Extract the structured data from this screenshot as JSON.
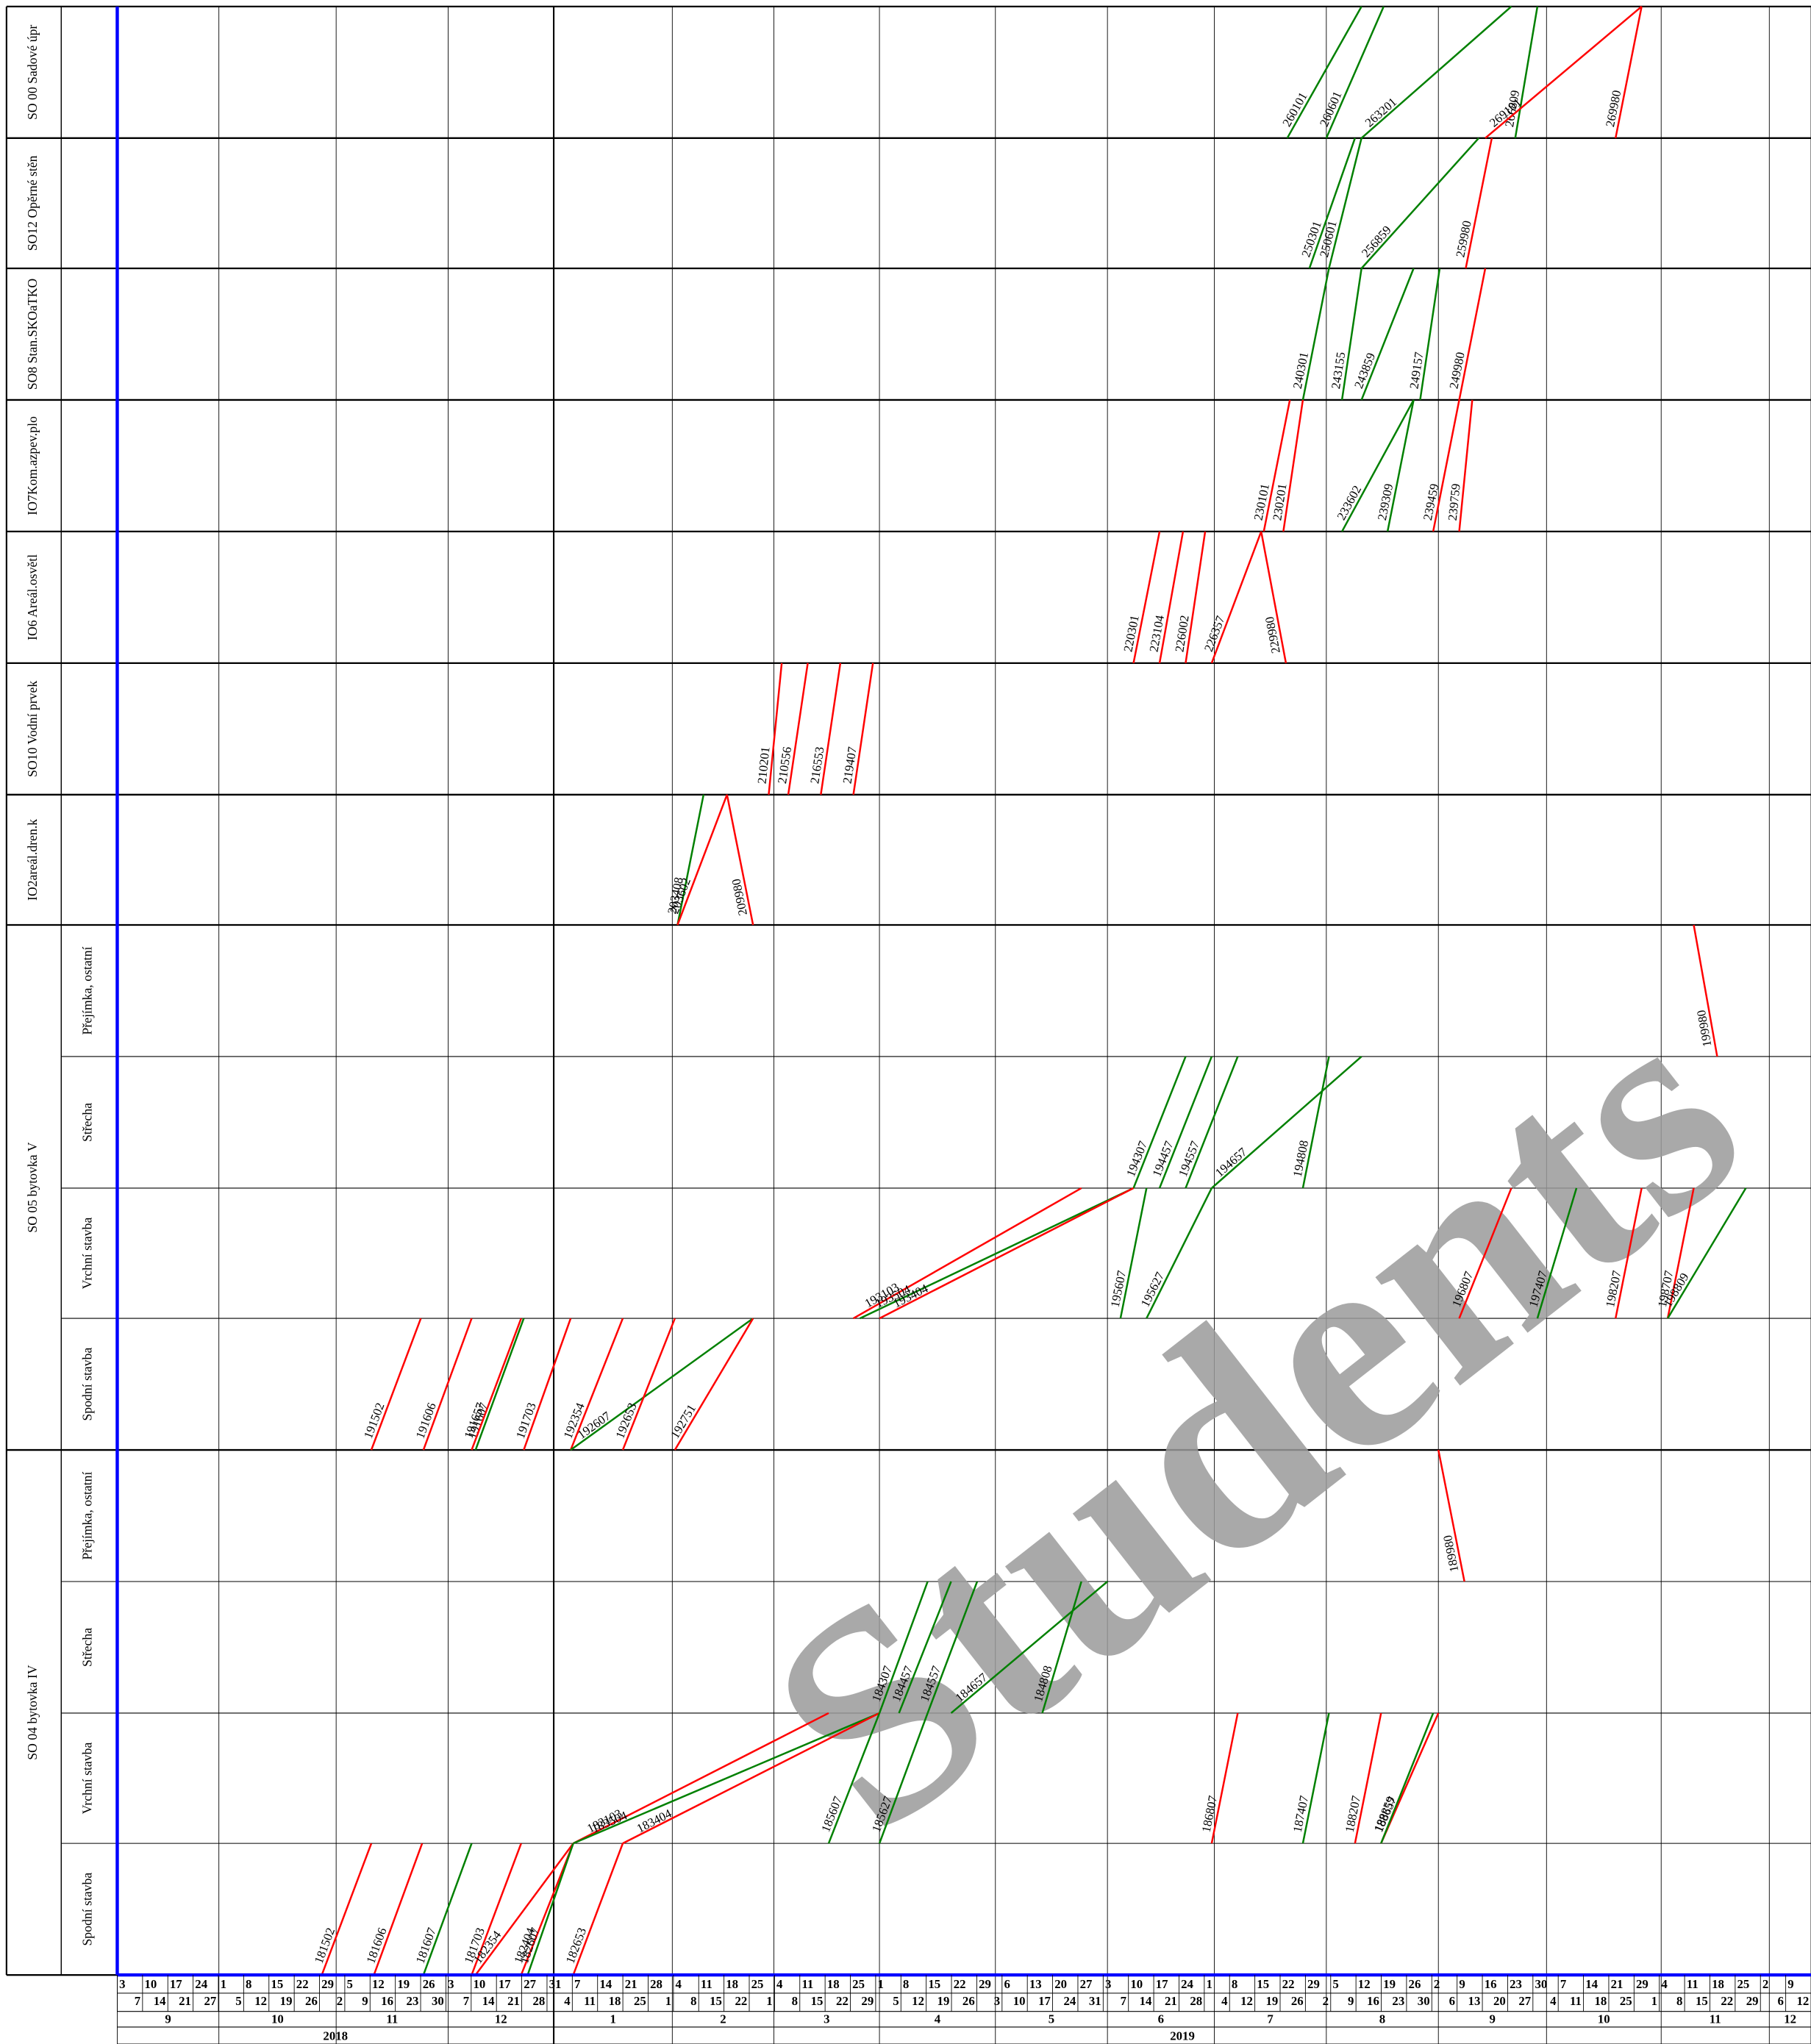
{
  "rows": [
    "SO 00 Sadové úpr",
    "SO12 Opěrné stěn",
    "SO8 Stan.SKOaTKO",
    "IO7Kom.azpev.plo",
    "IO6 Areál.osvětl",
    "SO10 Vodní prvek",
    "IO2areál.dren.k"
  ],
  "groups": [
    {
      "label": "SO 05 bytovka V",
      "subrows": [
        "Přejímka, ostatní",
        "Střecha",
        "Vrchní stavba",
        "Spodní stavba"
      ]
    },
    {
      "label": "SO 04 bytovka IV",
      "subrows": [
        "Přejímka, ostatní",
        "Střecha",
        "Vrchní stavba",
        "Spodní stavba"
      ]
    }
  ],
  "activities": [
    {
      "label": "260101",
      "color": "#008000"
    },
    {
      "label": "260601",
      "color": "#008000"
    },
    {
      "label": "263201",
      "color": "#008000"
    },
    {
      "label": "266809",
      "color": "#008000"
    },
    {
      "label": "269101",
      "color": "#ff0000"
    },
    {
      "label": "269980",
      "color": "#ff0000"
    },
    {
      "label": "250301",
      "color": "#008000"
    },
    {
      "label": "250601",
      "color": "#008000"
    },
    {
      "label": "256859",
      "color": "#008000"
    },
    {
      "label": "259980",
      "color": "#ff0000"
    },
    {
      "label": "240301",
      "color": "#008000"
    },
    {
      "label": "243155",
      "color": "#008000"
    },
    {
      "label": "243859",
      "color": "#008000"
    },
    {
      "label": "249157",
      "color": "#008000"
    },
    {
      "label": "249980",
      "color": "#ff0000"
    },
    {
      "label": "230101",
      "color": "#ff0000"
    },
    {
      "label": "230201",
      "color": "#ff0000"
    },
    {
      "label": "233602",
      "color": "#008000"
    },
    {
      "label": "239309",
      "color": "#008000"
    },
    {
      "label": "239459",
      "color": "#ff0000"
    },
    {
      "label": "239759",
      "color": "#ff0000"
    },
    {
      "label": "220301",
      "color": "#ff0000"
    },
    {
      "label": "223104",
      "color": "#ff0000"
    },
    {
      "label": "226002",
      "color": "#ff0000"
    },
    {
      "label": "226357",
      "color": "#ff0000"
    },
    {
      "label": "229980",
      "color": "#ff0000"
    },
    {
      "label": "210201",
      "color": "#ff0000"
    },
    {
      "label": "210556",
      "color": "#ff0000"
    },
    {
      "label": "216553",
      "color": "#ff0000"
    },
    {
      "label": "219407",
      "color": "#ff0000"
    },
    {
      "label": "203408",
      "color": "#008000"
    },
    {
      "label": "203602",
      "color": "#ff0000"
    },
    {
      "label": "209980",
      "color": "#ff0000"
    },
    {
      "label": "199980",
      "color": "#ff0000"
    },
    {
      "label": "194307",
      "color": "#008000"
    },
    {
      "label": "194457",
      "color": "#008000"
    },
    {
      "label": "194557",
      "color": "#008000"
    },
    {
      "label": "194657",
      "color": "#008000"
    },
    {
      "label": "194808",
      "color": "#008000"
    },
    {
      "label": "193103",
      "color": "#ff0000"
    },
    {
      "label": "193504",
      "color": "#008000"
    },
    {
      "label": "193404",
      "color": "#ff0000"
    },
    {
      "label": "195607",
      "color": "#008000"
    },
    {
      "label": "195627",
      "color": "#008000"
    },
    {
      "label": "196807",
      "color": "#ff0000"
    },
    {
      "label": "197407",
      "color": "#008000"
    },
    {
      "label": "198207",
      "color": "#ff0000"
    },
    {
      "label": "198707",
      "color": "#ff0000"
    },
    {
      "label": "198809",
      "color": "#008000"
    },
    {
      "label": "191502",
      "color": "#ff0000"
    },
    {
      "label": "191606",
      "color": "#ff0000"
    },
    {
      "label": "191607",
      "color": "#008000"
    },
    {
      "label": "191657",
      "color": "#ff0000"
    },
    {
      "label": "191703",
      "color": "#ff0000"
    },
    {
      "label": "192354",
      "color": "#ff0000"
    },
    {
      "label": "192607",
      "color": "#008000"
    },
    {
      "label": "192653",
      "color": "#ff0000"
    },
    {
      "label": "192751",
      "color": "#ff0000"
    },
    {
      "label": "189980",
      "color": "#ff0000"
    },
    {
      "label": "184307",
      "color": "#008000"
    },
    {
      "label": "184457",
      "color": "#008000"
    },
    {
      "label": "184557",
      "color": "#008000"
    },
    {
      "label": "184657",
      "color": "#008000"
    },
    {
      "label": "184808",
      "color": "#008000"
    },
    {
      "label": "183103",
      "color": "#ff0000"
    },
    {
      "label": "183504",
      "color": "#008000"
    },
    {
      "label": "183404",
      "color": "#ff0000"
    },
    {
      "label": "185607",
      "color": "#008000"
    },
    {
      "label": "185627",
      "color": "#008000"
    },
    {
      "label": "186807",
      "color": "#ff0000"
    },
    {
      "label": "187407",
      "color": "#008000"
    },
    {
      "label": "188207",
      "color": "#ff0000"
    },
    {
      "label": "188657",
      "color": "#ff0000"
    },
    {
      "label": "188859",
      "color": "#008000"
    },
    {
      "label": "181502",
      "color": "#ff0000"
    },
    {
      "label": "181606",
      "color": "#ff0000"
    },
    {
      "label": "181607",
      "color": "#008000"
    },
    {
      "label": "181703",
      "color": "#ff0000"
    },
    {
      "label": "182354",
      "color": "#ff0000"
    },
    {
      "label": "182404",
      "color": "#ff0000"
    },
    {
      "label": "182607",
      "color": "#008000"
    },
    {
      "label": "182653",
      "color": "#ff0000"
    }
  ],
  "axis": {
    "top_days": [
      "3",
      "10",
      "17",
      "24",
      "1",
      "8",
      "15",
      "22",
      "29",
      "5",
      "12",
      "19",
      "26",
      "3",
      "10",
      "17",
      "27",
      "31",
      "7",
      "14",
      "21",
      "28",
      "4",
      "11",
      "18",
      "25",
      "4",
      "11",
      "18",
      "25",
      "1",
      "8",
      "15",
      "22",
      "29",
      "6",
      "13",
      "20",
      "27",
      "3",
      "10",
      "17",
      "24",
      "1",
      "8",
      "15",
      "22",
      "29",
      "5",
      "12",
      "19",
      "26",
      "2",
      "9",
      "16",
      "23",
      "30",
      "7",
      "14",
      "21",
      "29",
      "4",
      "11",
      "18",
      "25",
      "2",
      "9"
    ],
    "bottom_days": [
      "7",
      "14",
      "21",
      "27",
      "5",
      "12",
      "19",
      "26",
      "2",
      "9",
      "16",
      "23",
      "30",
      "7",
      "14",
      "21",
      "28",
      "4",
      "11",
      "18",
      "25",
      "1",
      "8",
      "15",
      "22",
      "1",
      "8",
      "15",
      "22",
      "29",
      "5",
      "12",
      "19",
      "26",
      "3",
      "10",
      "17",
      "24",
      "31",
      "7",
      "14",
      "21",
      "28",
      "4",
      "12",
      "19",
      "26",
      "2",
      "9",
      "16",
      "23",
      "30",
      "6",
      "13",
      "20",
      "27",
      "4",
      "11",
      "18",
      "25",
      "1",
      "8",
      "15",
      "22",
      "29",
      "6",
      "12"
    ],
    "months": [
      "9",
      "10",
      "11",
      "12",
      "1",
      "2",
      "3",
      "4",
      "5",
      "6",
      "7",
      "8",
      "9",
      "10",
      "11",
      "12"
    ],
    "years": [
      "2018",
      "2019"
    ]
  },
  "watermark": "Students"
}
